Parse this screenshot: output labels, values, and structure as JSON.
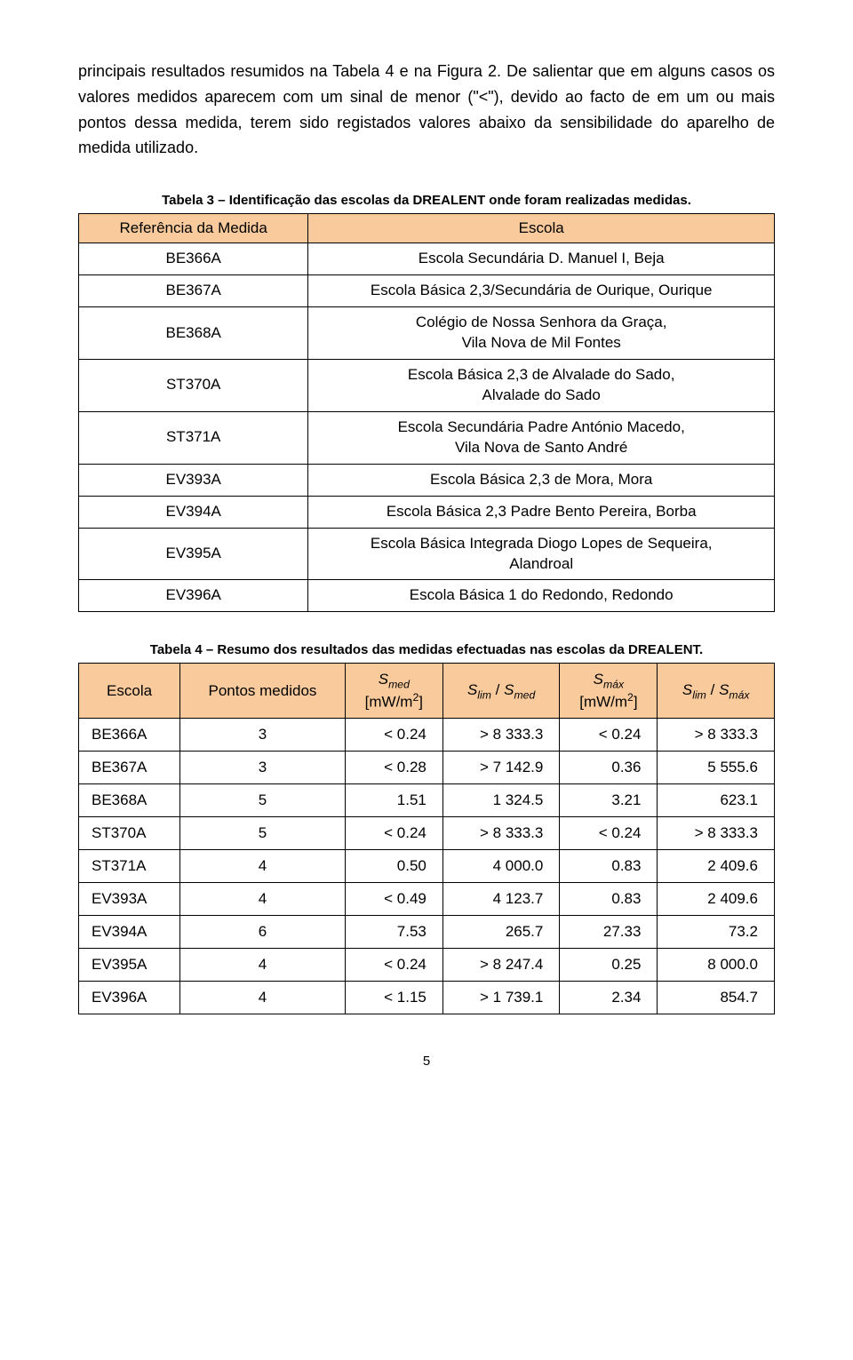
{
  "paragraph": "principais resultados resumidos na Tabela 4 e na Figura 2. De salientar que em alguns casos os valores medidos aparecem com um sinal de menor (\"<\"), devido ao facto de em um ou mais pontos dessa medida, terem sido registados valores abaixo da sensibilidade do aparelho de medida utilizado.",
  "table1": {
    "caption": "Tabela 3 – Identificação das escolas da DREALENT onde foram realizadas medidas.",
    "headers": {
      "ref": "Referência da Medida",
      "esc": "Escola"
    },
    "rows": [
      {
        "ref": "BE366A",
        "esc": "Escola Secundária D. Manuel I, Beja"
      },
      {
        "ref": "BE367A",
        "esc": "Escola Básica 2,3/Secundária de Ourique, Ourique"
      },
      {
        "ref": "BE368A",
        "esc": "Colégio de Nossa Senhora da Graça,\nVila Nova de Mil Fontes"
      },
      {
        "ref": "ST370A",
        "esc": "Escola Básica 2,3 de Alvalade do Sado,\nAlvalade do Sado"
      },
      {
        "ref": "ST371A",
        "esc": "Escola Secundária Padre António Macedo,\nVila Nova de Santo André"
      },
      {
        "ref": "EV393A",
        "esc": "Escola Básica 2,3 de Mora, Mora"
      },
      {
        "ref": "EV394A",
        "esc": "Escola Básica 2,3 Padre Bento Pereira, Borba"
      },
      {
        "ref": "EV395A",
        "esc": "Escola Básica Integrada Diogo Lopes de Sequeira,\nAlandroal"
      },
      {
        "ref": "EV396A",
        "esc": "Escola Básica 1 do Redondo, Redondo"
      }
    ]
  },
  "table2": {
    "caption": "Tabela 4 – Resumo dos resultados das medidas efectuadas nas escolas da DREALENT.",
    "headers": {
      "escola": "Escola",
      "pontos": "Pontos medidos",
      "smed_label": "S",
      "smed_sub": "med",
      "unit_open": "[mW/m",
      "unit_sup": "2",
      "unit_close": "]",
      "slim_label": "S",
      "slim_sub": "lim",
      "sep": " / ",
      "smax_label": "S",
      "smax_sub": "máx"
    },
    "rows": [
      {
        "escola": "BE366A",
        "pontos": "3",
        "smed": "< 0.24",
        "r1": "> 8 333.3",
        "smax": "< 0.24",
        "r2": "> 8 333.3"
      },
      {
        "escola": "BE367A",
        "pontos": "3",
        "smed": "< 0.28",
        "r1": "> 7 142.9",
        "smax": "0.36",
        "r2": "5 555.6"
      },
      {
        "escola": "BE368A",
        "pontos": "5",
        "smed": "1.51",
        "r1": "1 324.5",
        "smax": "3.21",
        "r2": "623.1"
      },
      {
        "escola": "ST370A",
        "pontos": "5",
        "smed": "< 0.24",
        "r1": "> 8 333.3",
        "smax": "< 0.24",
        "r2": "> 8 333.3"
      },
      {
        "escola": "ST371A",
        "pontos": "4",
        "smed": "0.50",
        "r1": "4 000.0",
        "smax": "0.83",
        "r2": "2 409.6"
      },
      {
        "escola": "EV393A",
        "pontos": "4",
        "smed": "< 0.49",
        "r1": "4 123.7",
        "smax": "0.83",
        "r2": "2 409.6"
      },
      {
        "escola": "EV394A",
        "pontos": "6",
        "smed": "7.53",
        "r1": "265.7",
        "smax": "27.33",
        "r2": "73.2"
      },
      {
        "escola": "EV395A",
        "pontos": "4",
        "smed": "< 0.24",
        "r1": "> 8 247.4",
        "smax": "0.25",
        "r2": "8 000.0"
      },
      {
        "escola": "EV396A",
        "pontos": "4",
        "smed": "< 1.15",
        "r1": "> 1 739.1",
        "smax": "2.34",
        "r2": "854.7"
      }
    ]
  },
  "page_number": "5",
  "colors": {
    "header_bg": "#f9cb9c",
    "border": "#000000",
    "text": "#000000",
    "background": "#ffffff"
  }
}
